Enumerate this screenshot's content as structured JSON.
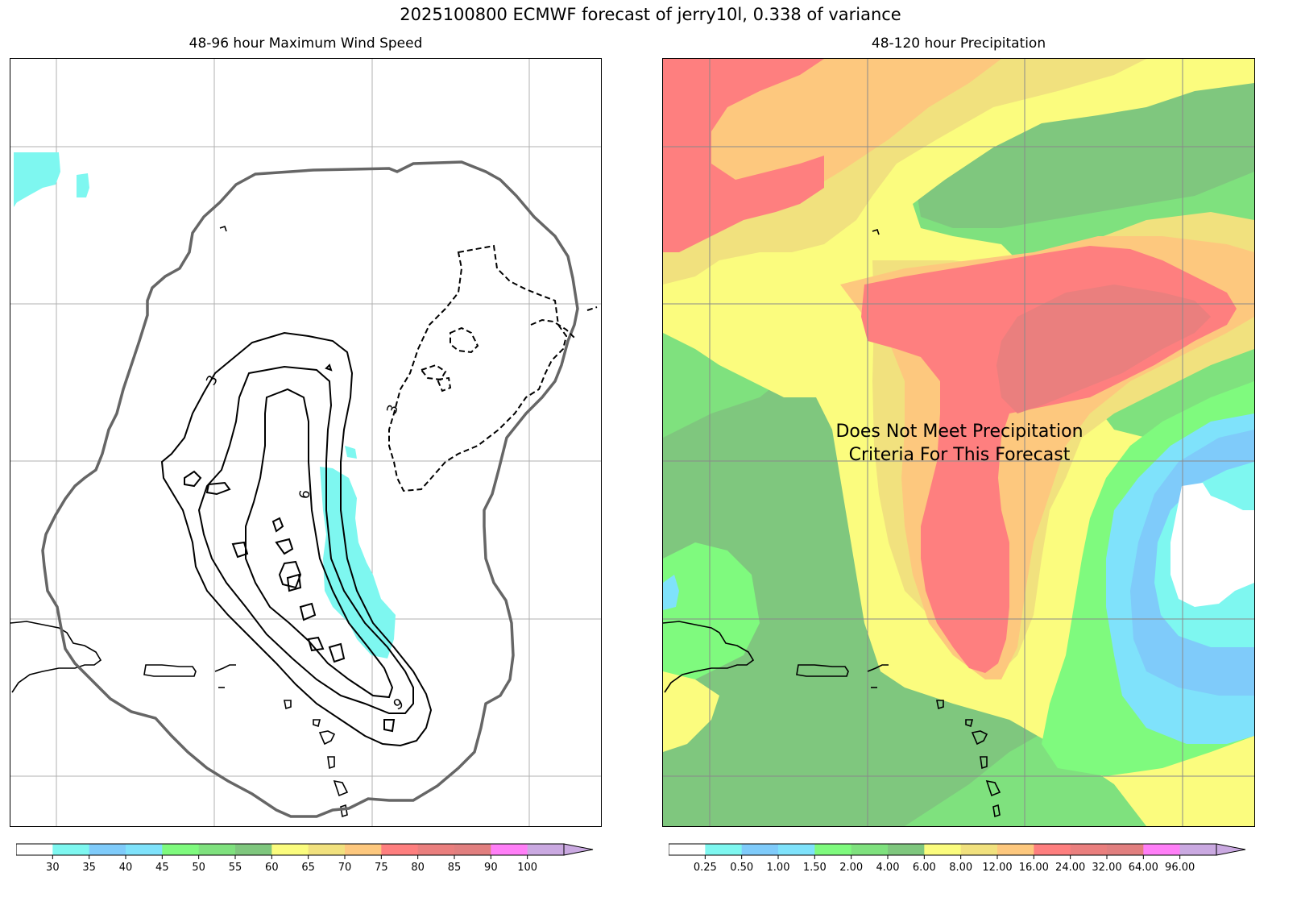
{
  "title": "2025100800 ECMWF forecast of jerry10l, 0.338 of variance",
  "left_panel": {
    "title": "48-96 hour Maximum Wind Speed",
    "contour_labels": [
      "3",
      "6",
      "9",
      "3"
    ],
    "colorbar": {
      "colors": [
        "#ffffff",
        "#7ef7f0",
        "#7fcbfa",
        "#7fe2fb",
        "#7ffa7e",
        "#7fe17e",
        "#7fc77e",
        "#fbfc7e",
        "#f1e17e",
        "#fdc87e",
        "#fe7f7f",
        "#ea7f7e",
        "#e17f7f",
        "#ff7ff7",
        "#caa9e1"
      ],
      "extend_color": "#caa9e1",
      "ticks": [
        "30",
        "35",
        "40",
        "45",
        "50",
        "55",
        "60",
        "65",
        "70",
        "75",
        "80",
        "85",
        "90",
        "100"
      ]
    }
  },
  "right_panel": {
    "title": "48-120 hour Precipitation",
    "message_line1": "Does Not Meet Precipitation",
    "message_line2": "Criteria For This Forecast",
    "colorbar": {
      "colors": [
        "#ffffff",
        "#7ef7f0",
        "#7fcbfa",
        "#7fe2fb",
        "#7ffa7e",
        "#7fe17e",
        "#7fc77e",
        "#fbfc7e",
        "#f1e17e",
        "#fdc87e",
        "#fe7f7f",
        "#ea7f7e",
        "#e17f7f",
        "#ff7ff7",
        "#caa9e1"
      ],
      "extend_color": "#caa9e1",
      "ticks": [
        "0.25",
        "0.50",
        "1.00",
        "1.50",
        "2.00",
        "4.00",
        "6.00",
        "8.00",
        "12.00",
        "16.00",
        "24.00",
        "32.00",
        "64.00",
        "96.00"
      ]
    }
  }
}
